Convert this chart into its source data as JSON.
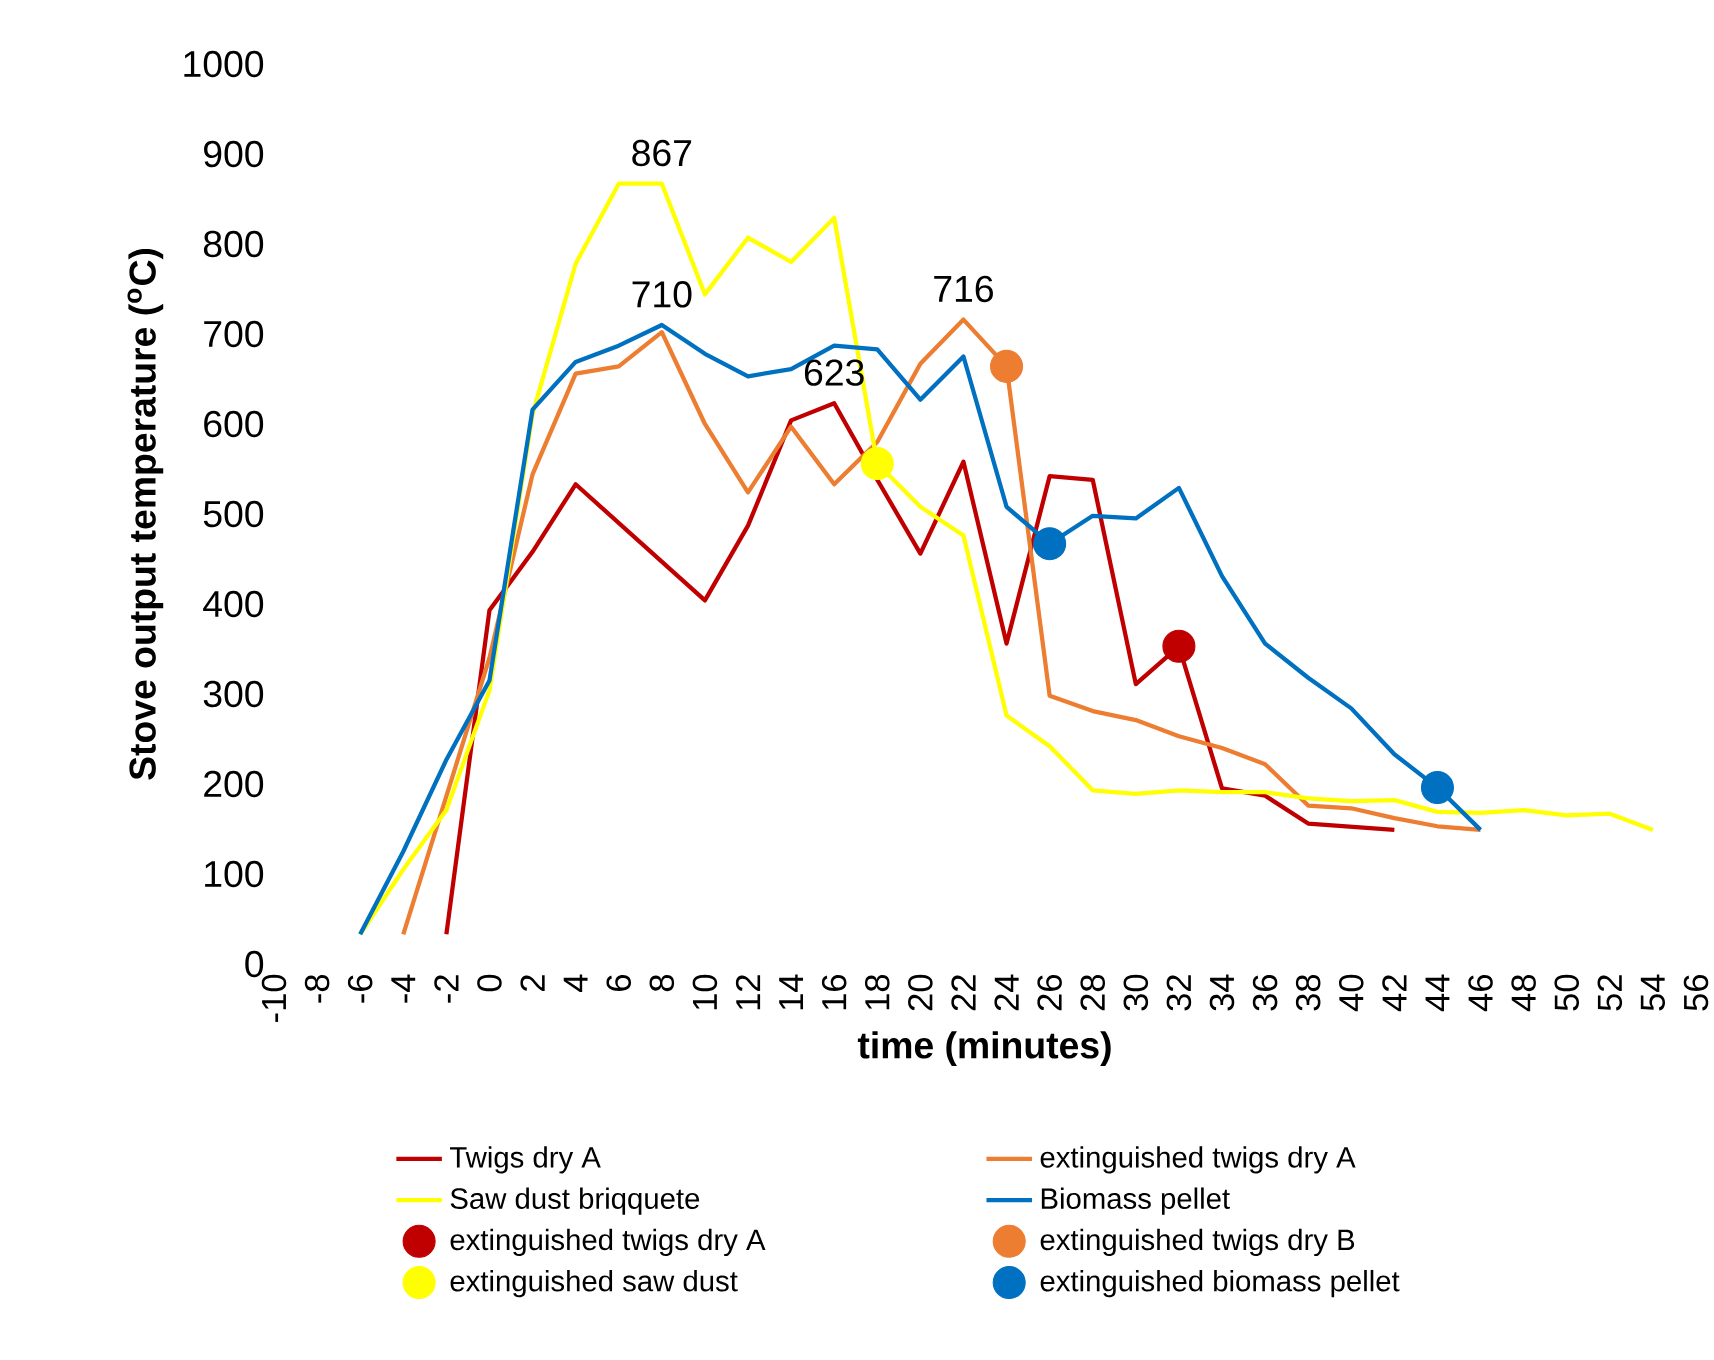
{
  "chart_data": {
    "type": "line",
    "xlabel": "time (minutes)",
    "ylabel": "Stove output temperature ($^{o}$C)",
    "xlim": [
      -10,
      56
    ],
    "xticks": [
      -10,
      -8,
      -6,
      -4,
      -2,
      0,
      2,
      4,
      6,
      8,
      10,
      12,
      14,
      16,
      18,
      20,
      22,
      24,
      26,
      28,
      30,
      32,
      34,
      36,
      38,
      40,
      42,
      44,
      46,
      48,
      50,
      52,
      54,
      56
    ],
    "ylim": [
      0,
      1000
    ],
    "yticks": [
      0,
      100,
      200,
      300,
      400,
      500,
      600,
      700,
      800,
      900,
      1000
    ],
    "legend": "bottom",
    "series": [
      {
        "name": "Twigs dry  A",
        "color": "#c00000",
        "x": [
          -2,
          0,
          2,
          4,
          10,
          12,
          14,
          16,
          18,
          20,
          22,
          24,
          26,
          28,
          30,
          32,
          34,
          36,
          38,
          42
        ],
        "values": [
          33,
          393,
          458,
          533,
          404,
          487,
          604,
          623,
          538,
          456,
          558,
          356,
          542,
          538,
          311,
          353,
          195,
          187,
          156,
          149
        ]
      },
      {
        "name": "extinguished twigs dry A",
        "color": "#ed7d31",
        "x": [
          -4,
          0,
          2,
          4,
          6,
          8,
          10,
          12,
          14,
          16,
          18,
          20,
          22,
          24,
          26,
          28,
          30,
          32,
          34,
          36,
          38,
          40,
          42,
          44,
          46
        ],
        "values": [
          33,
          340,
          544,
          656,
          664,
          702,
          600,
          524,
          597,
          533,
          580,
          667,
          716,
          664,
          298,
          281,
          271,
          253,
          240,
          222,
          176,
          173,
          162,
          153,
          149
        ]
      },
      {
        "name": "Saw dust briqquete",
        "color": "#ffff00",
        "x": [
          -6,
          -4,
          -2,
          0,
          2,
          4,
          6,
          8,
          10,
          12,
          14,
          16,
          18,
          20,
          22,
          24,
          26,
          28,
          30,
          32,
          34,
          36,
          38,
          40,
          42,
          44,
          46,
          48,
          50,
          52,
          54
        ],
        "values": [
          33,
          105,
          171,
          304,
          611,
          778,
          867,
          867,
          744,
          807,
          780,
          829,
          556,
          508,
          476,
          276,
          242,
          193,
          189,
          193,
          191,
          191,
          184,
          181,
          182,
          169,
          168,
          171,
          165,
          167,
          149
        ]
      },
      {
        "name": "Biomass pellet",
        "color": "#0070c0",
        "x": [
          -6,
          -4,
          -2,
          0,
          2,
          4,
          6,
          8,
          10,
          12,
          14,
          16,
          18,
          20,
          22,
          24,
          26,
          28,
          30,
          32,
          34,
          36,
          38,
          40,
          42,
          44,
          46
        ],
        "values": [
          33,
          125,
          227,
          315,
          616,
          669,
          687,
          710,
          678,
          653,
          661,
          687,
          683,
          627,
          675,
          508,
          467,
          498,
          495,
          529,
          431,
          356,
          318,
          284,
          233,
          196,
          149
        ]
      },
      {
        "name": "extinguished twigs dry A",
        "type": "scatter",
        "marker": "circle",
        "color": "#c00000",
        "x": [
          32
        ],
        "values": [
          353
        ]
      },
      {
        "name": "extinguished twigs dry B",
        "type": "scatter",
        "marker": "circle",
        "color": "#ed7d31",
        "x": [
          24
        ],
        "values": [
          664
        ]
      },
      {
        "name": "extinguished saw dust",
        "type": "scatter",
        "marker": "circle",
        "color": "#ffff00",
        "x": [
          18
        ],
        "values": [
          556
        ]
      },
      {
        "name": "extinguished biomass pellet",
        "type": "scatter",
        "marker": "circle",
        "color": "#0070c0",
        "x": [
          26,
          44
        ],
        "values": [
          467,
          196
        ]
      }
    ],
    "annotations": [
      {
        "text": "867",
        "x": 8,
        "y": 867
      },
      {
        "text": "710",
        "x": 8,
        "y": 710
      },
      {
        "text": "623",
        "x": 16,
        "y": 623
      },
      {
        "text": "716",
        "x": 22,
        "y": 716
      }
    ]
  }
}
